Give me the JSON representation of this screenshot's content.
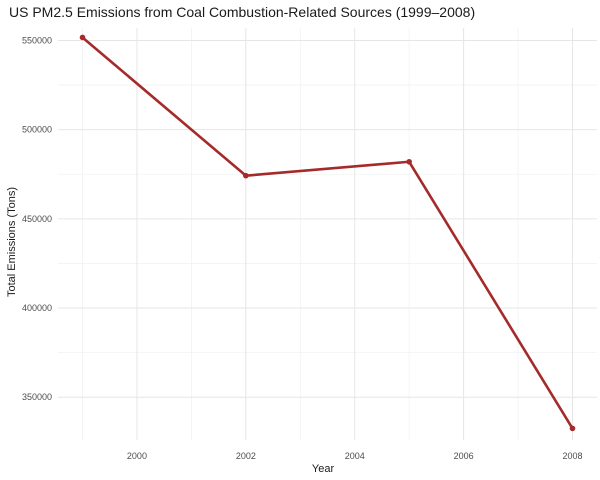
{
  "chart_data": {
    "type": "line",
    "title": "US PM2.5 Emissions from Coal Combustion-Related Sources (1999–2008)",
    "xlabel": "Year",
    "ylabel": "Total Emissions (Tons)",
    "x": [
      1999,
      2002,
      2005,
      2008
    ],
    "series": [
      {
        "values": [
          551700,
          474200,
          482000,
          332500
        ]
      }
    ],
    "xlim": [
      1998.55,
      2008.45
    ],
    "ylim": [
      326000,
      557000
    ],
    "x_ticks": [
      2000,
      2002,
      2004,
      2006,
      2008
    ],
    "x_tick_labels": [
      "2000",
      "2002",
      "2004",
      "2006",
      "2008"
    ],
    "y_ticks": [
      350000,
      400000,
      450000,
      500000,
      550000
    ],
    "y_tick_labels": [
      "350000",
      "400000",
      "450000",
      "500000",
      "550000"
    ],
    "grid": true,
    "legend": "none",
    "colors": {
      "line": "#a52a2a",
      "grid": "#e6e6e6"
    }
  }
}
